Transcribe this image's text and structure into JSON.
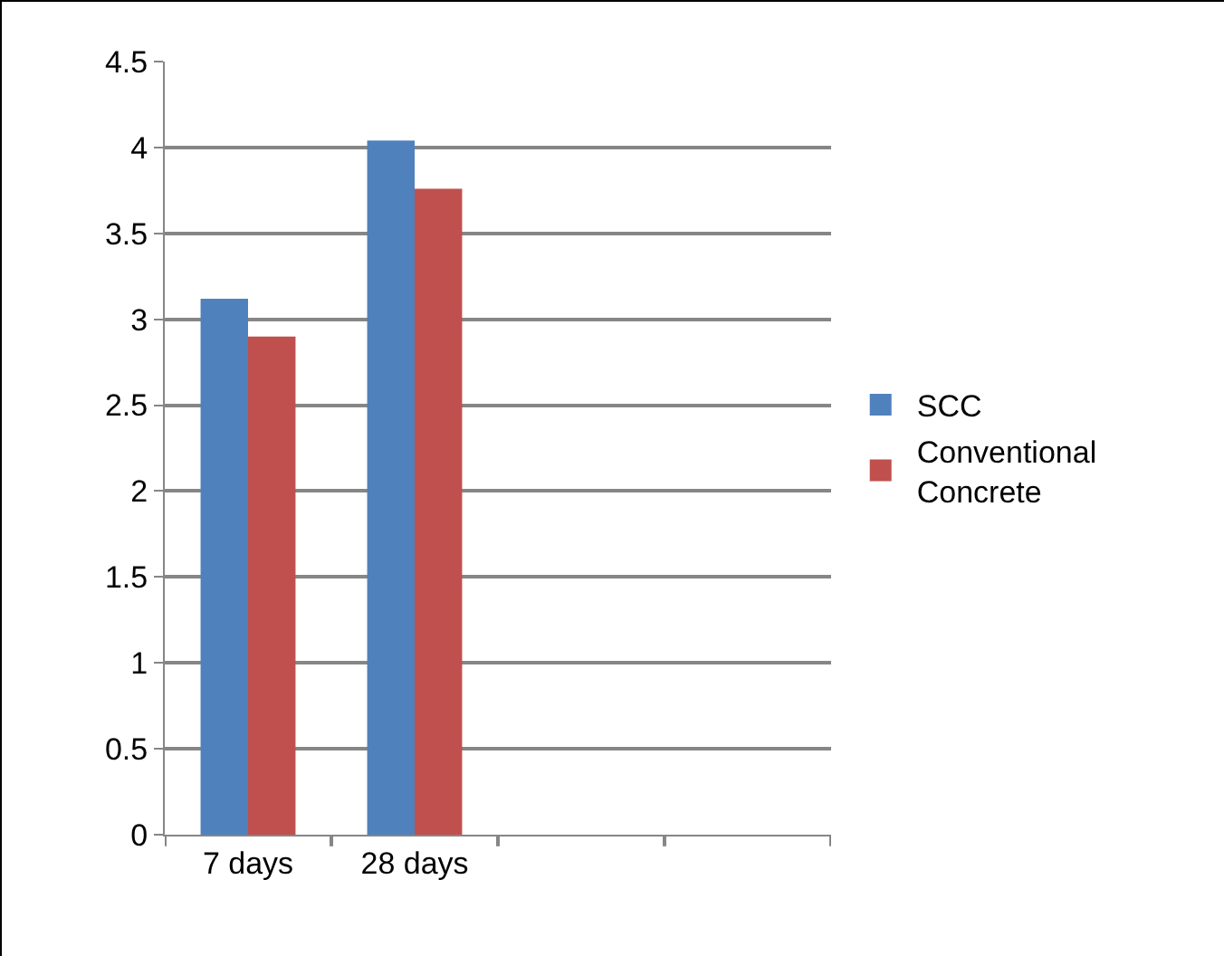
{
  "chart_data": {
    "type": "bar",
    "categories": [
      "7 days",
      "28 days",
      null,
      null
    ],
    "series": [
      {
        "name": "SCC",
        "color": "#4f81bd",
        "values": [
          3.12,
          4.04,
          null,
          null
        ]
      },
      {
        "name": "Conventional Concrete",
        "color": "#c0504d",
        "values": [
          2.9,
          3.76,
          null,
          null
        ]
      }
    ],
    "ylim": [
      0,
      4.5
    ],
    "yticks": [
      0,
      0.5,
      1,
      1.5,
      2,
      2.5,
      3,
      3.5,
      4,
      4.5
    ],
    "grid": "y",
    "legend": "right"
  }
}
